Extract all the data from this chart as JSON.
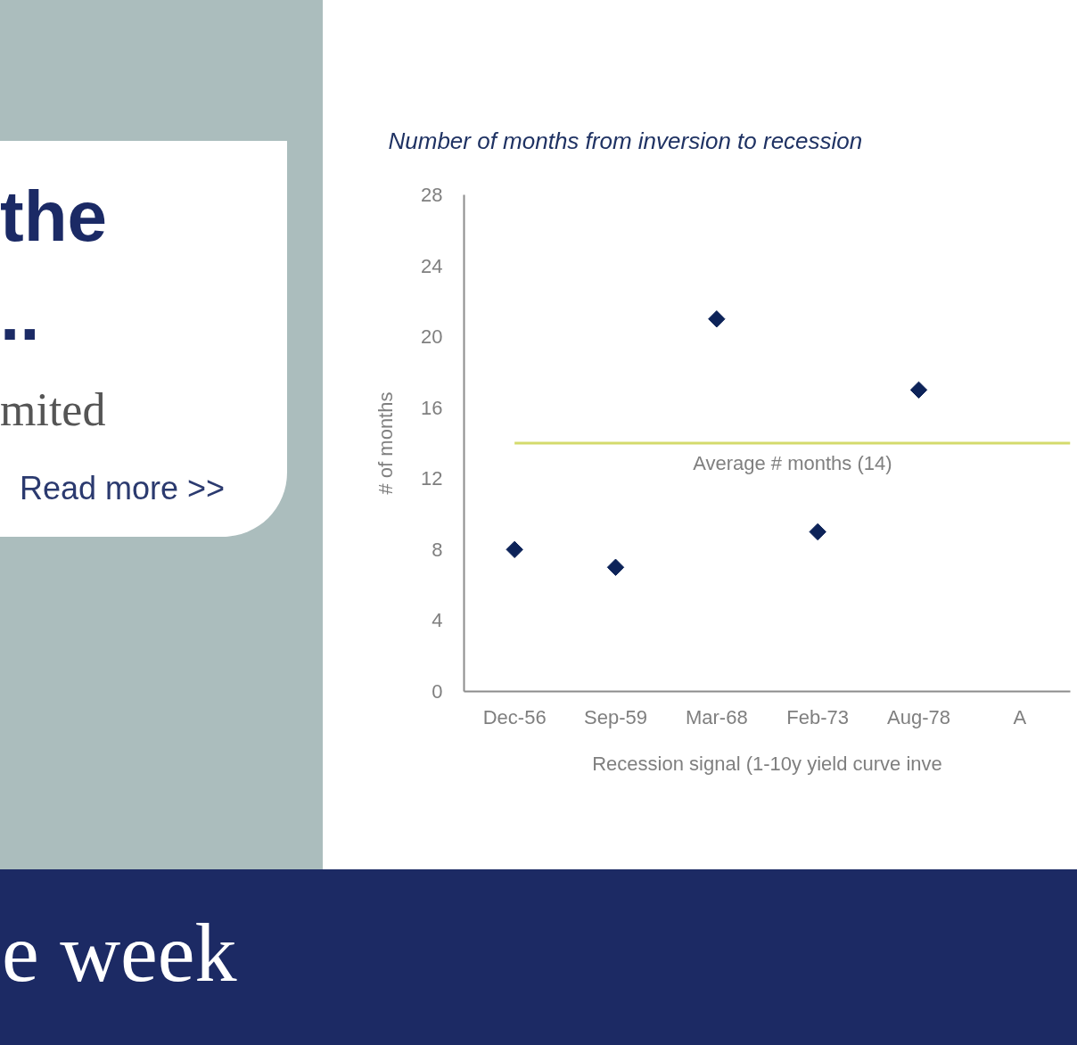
{
  "chart_data": {
    "type": "scatter",
    "title": "Number of months from inversion to recession",
    "xlabel": "Recession signal (1-10y yield curve inve",
    "ylabel": "# of months",
    "categories": [
      "Dec-56",
      "Sep-59",
      "Mar-68",
      "Feb-73",
      "Aug-78",
      "A"
    ],
    "series": [
      {
        "color": "#0d2359",
        "values": [
          8,
          7,
          21,
          9,
          17,
          null
        ]
      }
    ],
    "ylim": [
      0,
      28
    ],
    "yticks": [
      0,
      4,
      8,
      12,
      16,
      20,
      24,
      28
    ],
    "marker": "diamond",
    "ref_lines": [
      {
        "axis": "y",
        "value": 14,
        "label": "Average # months (14)",
        "color": "#d4db6c"
      }
    ],
    "annotations": [
      "the",
      "..",
      "mited",
      "Read more >>",
      "e week"
    ]
  }
}
